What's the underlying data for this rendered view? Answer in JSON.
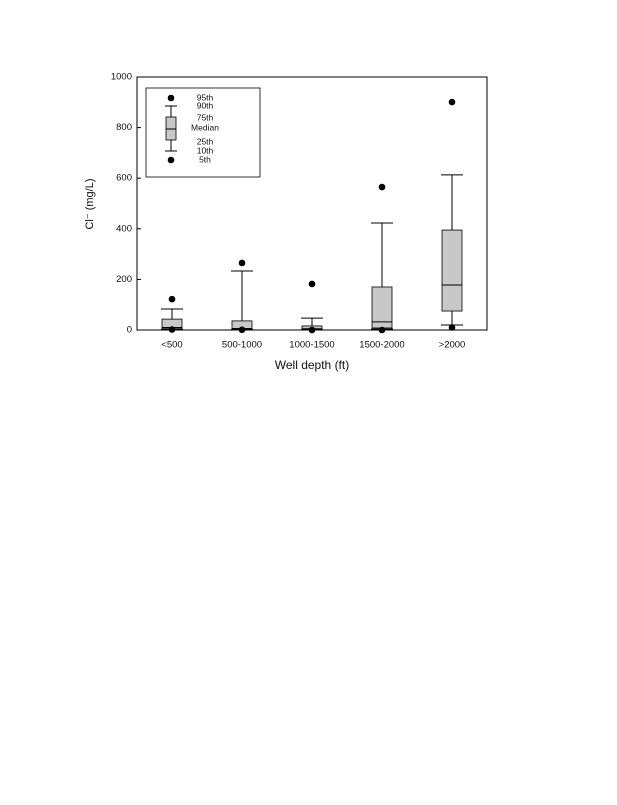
{
  "chart_data": {
    "type": "box",
    "y_label": "Cl⁻ (mg/L)",
    "x_label": "Well depth (ft)",
    "categories": [
      "<500",
      "500-1000",
      "1000-1500",
      "1500-2000",
      ">2000"
    ],
    "stats": [
      {
        "p5": 2,
        "p10": 3,
        "p25": 5,
        "median": 10,
        "p75": 43,
        "p90": 83,
        "p95": 122
      },
      {
        "p5": 1,
        "p10": 2,
        "p25": 3,
        "median": 6,
        "p75": 36,
        "p90": 233,
        "p95": 265
      },
      {
        "p5": 0,
        "p10": 1,
        "p25": 2,
        "median": 5,
        "p75": 16,
        "p90": 47,
        "p95": 182
      },
      {
        "p5": 0,
        "p10": 4,
        "p25": 8,
        "median": 32,
        "p75": 170,
        "p90": 423,
        "p95": 565
      },
      {
        "p5": 10,
        "p10": 20,
        "p25": 75,
        "median": 178,
        "p75": 395,
        "p90": 613,
        "p95": 901
      }
    ],
    "legend": {
      "p95": "95th",
      "p90": "90th",
      "p75": "75th",
      "median": "Median",
      "p25": "25th",
      "p10": "10th",
      "p5": "5th"
    },
    "color": "#c8c8c8",
    "ylim": [
      0,
      1000
    ],
    "yticks": [
      0,
      200,
      400,
      600,
      800,
      1000
    ]
  }
}
